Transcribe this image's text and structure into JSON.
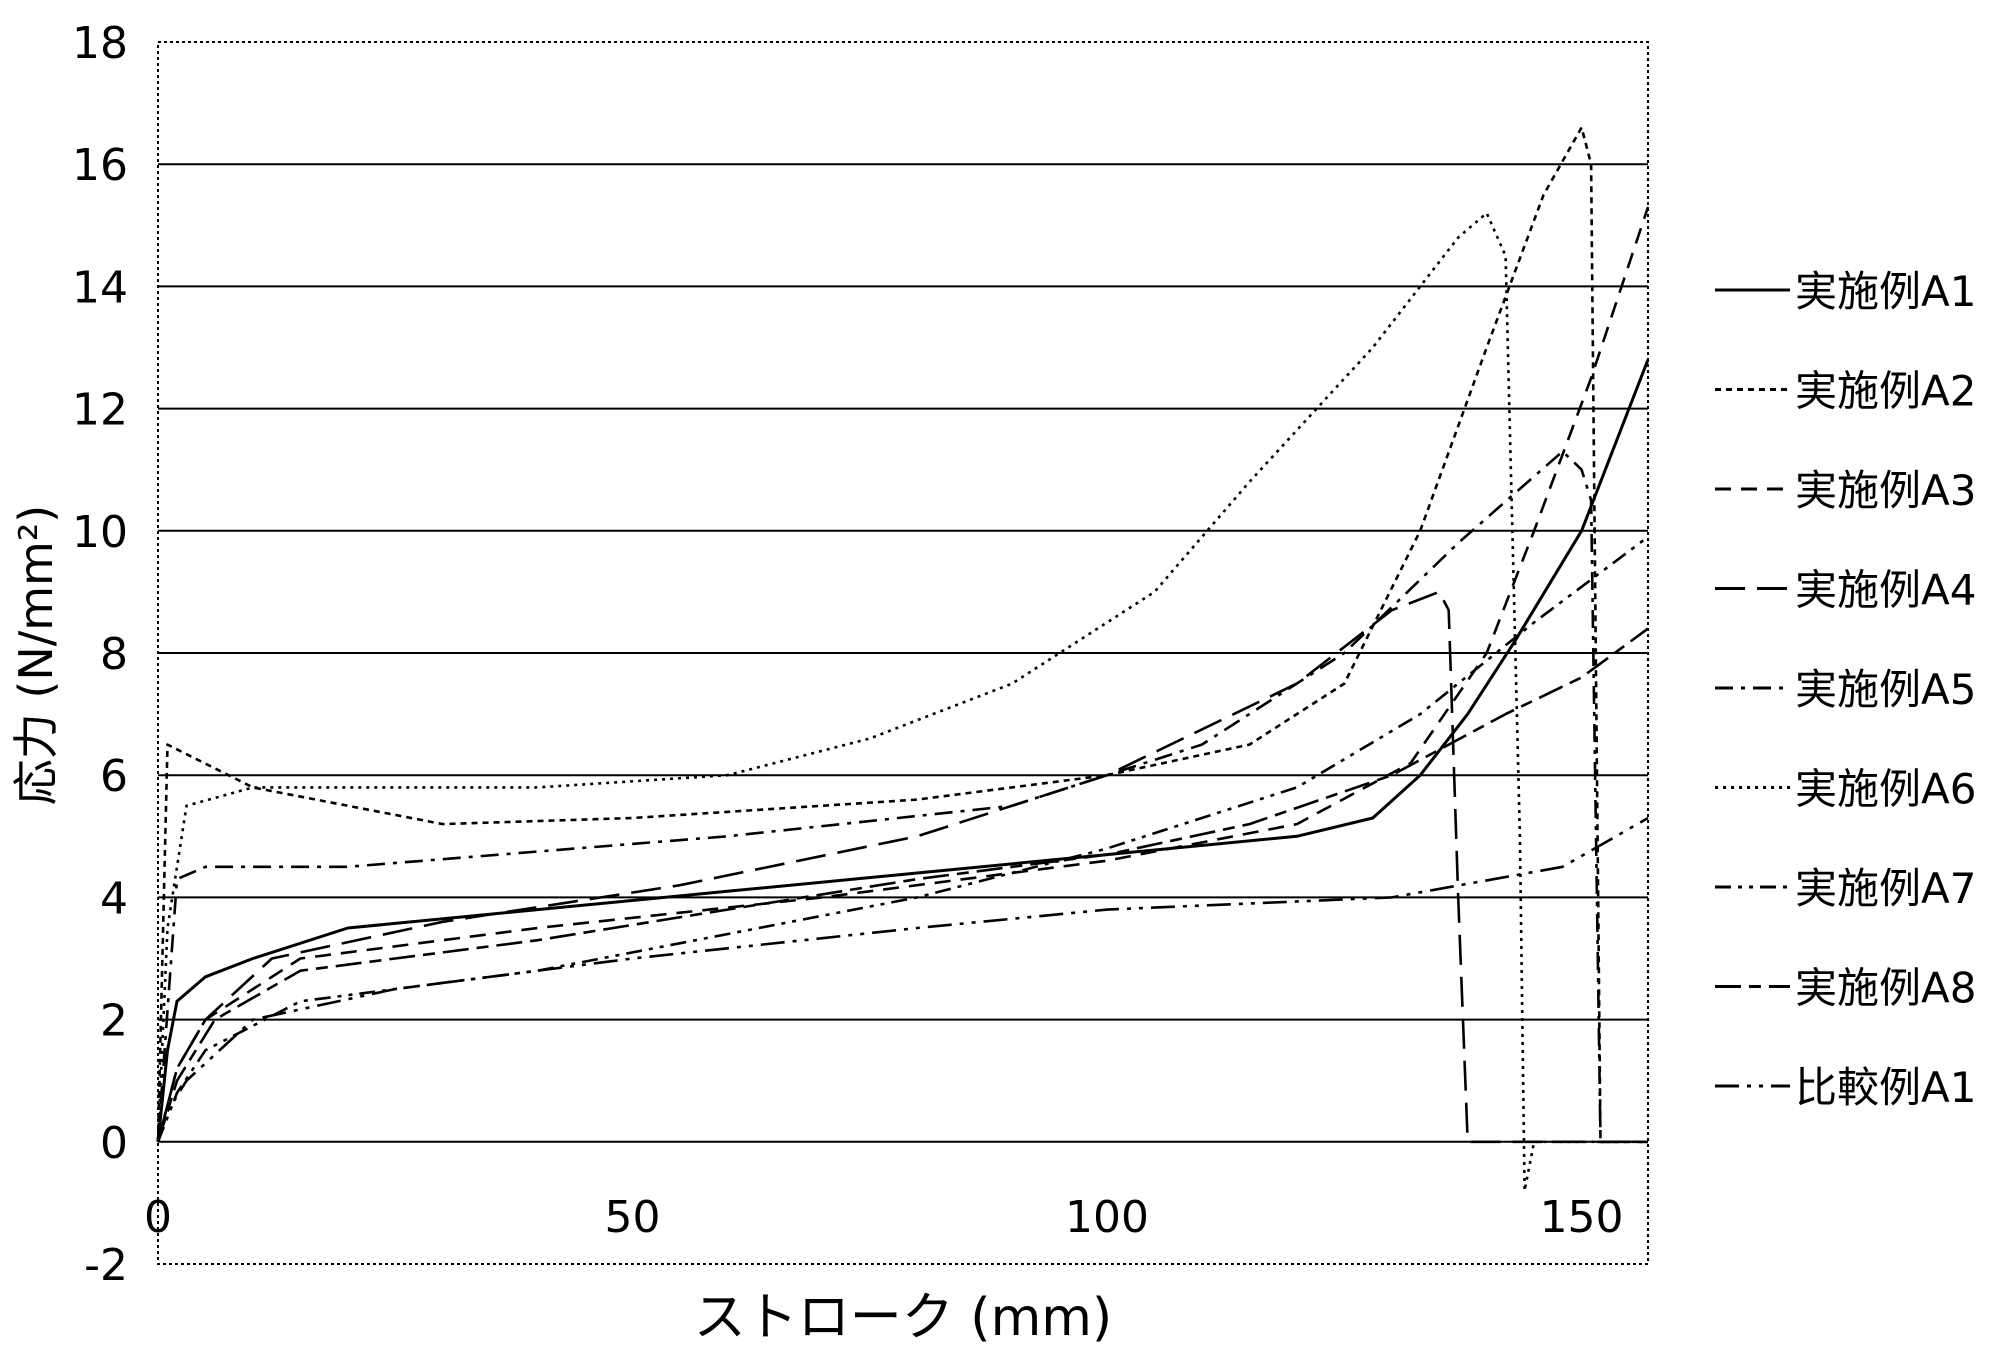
{
  "chart_data": {
    "type": "line",
    "xlabel": "ストローク (mm)",
    "ylabel": "応力 (N/mm²)",
    "xlim": [
      0,
      157
    ],
    "ylim": [
      -2,
      18
    ],
    "xticks": [
      "0",
      "50",
      "100",
      "150"
    ],
    "yticks": [
      "18",
      "16",
      "14",
      "12",
      "10",
      "8",
      "6",
      "4",
      "2",
      "0",
      "-2"
    ],
    "grid": "horizontal",
    "legend_position": "right",
    "series": [
      {
        "name": "実施例A1",
        "dash": "solid",
        "x": [
          0,
          1,
          2,
          5,
          10,
          20,
          40,
          60,
          80,
          100,
          120,
          128,
          133,
          138,
          143,
          150,
          157
        ],
        "y": [
          0,
          1.5,
          2.3,
          2.7,
          3.0,
          3.5,
          3.8,
          4.1,
          4.4,
          4.7,
          5.0,
          5.3,
          6.0,
          7.0,
          8.2,
          10.0,
          12.8
        ]
      },
      {
        "name": "実施例A2",
        "dash": "short-dash",
        "x": [
          0,
          1,
          10,
          30,
          50,
          80,
          100,
          115,
          125,
          133,
          140,
          146,
          150,
          151,
          152,
          153,
          157
        ],
        "y": [
          0,
          6.5,
          5.8,
          5.2,
          5.3,
          5.6,
          6.0,
          6.5,
          7.5,
          10.0,
          13.0,
          15.5,
          16.6,
          16.0,
          0,
          0,
          0
        ]
      },
      {
        "name": "実施例A3",
        "dash": "dash",
        "x": [
          0,
          2,
          5,
          15,
          40,
          70,
          100,
          120,
          132,
          140,
          145,
          151,
          157
        ],
        "y": [
          0,
          1.2,
          2.0,
          3.0,
          3.5,
          4.0,
          4.6,
          5.2,
          6.2,
          8.0,
          10.0,
          12.5,
          15.3
        ]
      },
      {
        "name": "実施例A4",
        "dash": "long-dash",
        "x": [
          0,
          2,
          5,
          12,
          30,
          55,
          80,
          100,
          120,
          130,
          135,
          136,
          137,
          138,
          157
        ],
        "y": [
          0,
          1.2,
          2.0,
          3.0,
          3.6,
          4.2,
          5.0,
          6.0,
          7.5,
          8.7,
          9.0,
          8.7,
          4.0,
          0,
          0
        ]
      },
      {
        "name": "実施例A5",
        "dash": "dash-dot",
        "x": [
          0,
          2,
          5,
          20,
          60,
          90,
          110,
          125,
          137,
          148,
          150,
          151,
          152,
          157
        ],
        "y": [
          0,
          4.3,
          4.5,
          4.5,
          5.0,
          5.5,
          6.5,
          8.0,
          9.8,
          11.3,
          11.0,
          10.5,
          0,
          0
        ]
      },
      {
        "name": "実施例A6",
        "dash": "dotted",
        "x": [
          0,
          1,
          3,
          10,
          40,
          60,
          75,
          90,
          105,
          115,
          128,
          137,
          140,
          142,
          143.5,
          144,
          145,
          157
        ],
        "y": [
          0,
          3.5,
          5.5,
          5.8,
          5.8,
          6.0,
          6.6,
          7.5,
          9.0,
          10.8,
          13.0,
          14.8,
          15.2,
          14.5,
          5.0,
          -0.8,
          0,
          0
        ]
      },
      {
        "name": "実施例A7",
        "dash": "dash-dot-dot",
        "x": [
          0,
          2,
          5,
          15,
          40,
          60,
          80,
          100,
          120,
          133,
          145,
          157
        ],
        "y": [
          0,
          0.8,
          1.5,
          2.3,
          2.8,
          3.4,
          4.0,
          4.8,
          5.8,
          7.0,
          8.5,
          9.9
        ]
      },
      {
        "name": "実施例A8",
        "dash": "long-short-dash",
        "x": [
          0,
          2,
          6,
          15,
          40,
          60,
          80,
          100,
          115,
          130,
          142,
          150,
          157
        ],
        "y": [
          0,
          1.0,
          2.0,
          2.8,
          3.3,
          3.8,
          4.3,
          4.7,
          5.2,
          6.0,
          7.0,
          7.6,
          8.4
        ]
      },
      {
        "name": "比較例A1",
        "dash": "long-dot-dot",
        "x": [
          0,
          1,
          3,
          10,
          25,
          50,
          80,
          100,
          130,
          148,
          157
        ],
        "y": [
          0,
          0.5,
          1.0,
          2.0,
          2.5,
          3.0,
          3.5,
          3.8,
          4.0,
          4.5,
          5.3
        ]
      }
    ]
  }
}
